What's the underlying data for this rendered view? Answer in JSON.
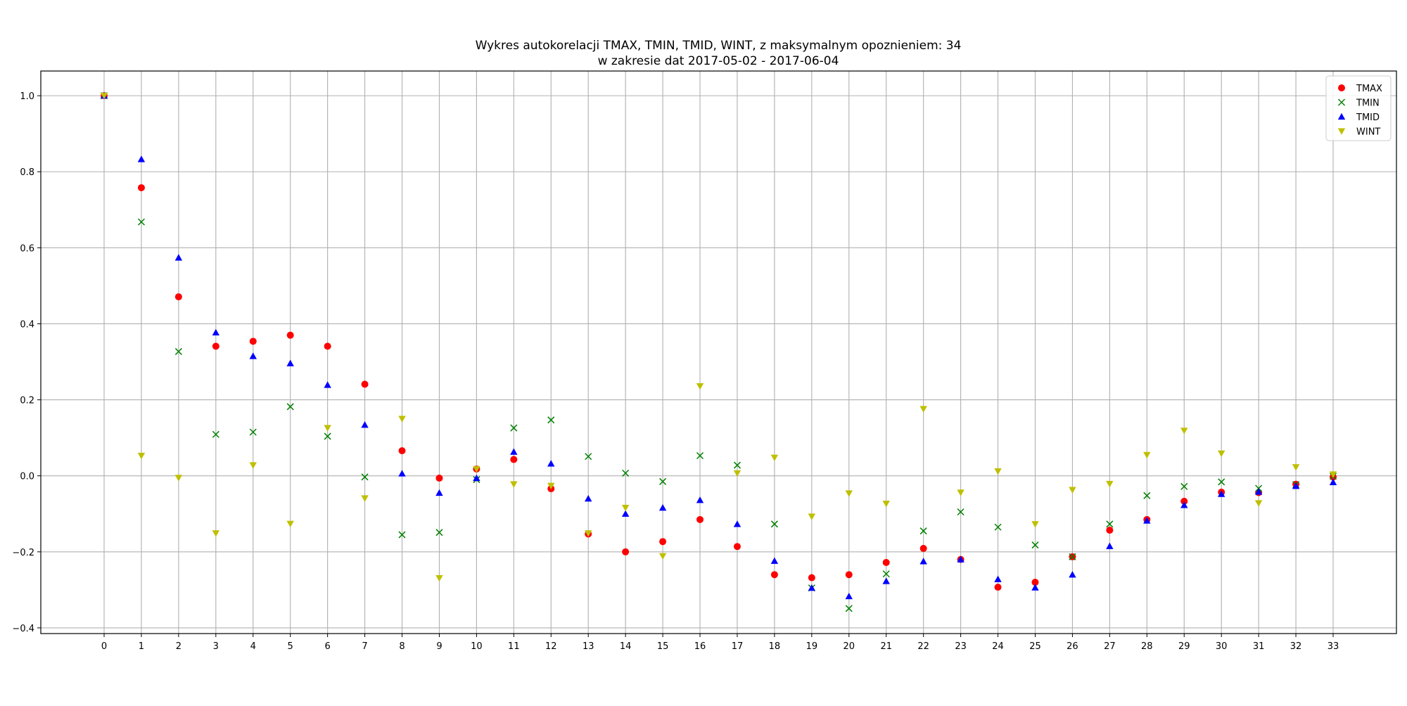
{
  "chart_data": {
    "type": "scatter",
    "title": "Wykres autokorelacji TMAX, TMIN, TMID, WINT, z maksymalnym opoznieniem: 34",
    "subtitle": "w zakresie dat 2017-05-02 - 2017-06-04",
    "xlabel": "",
    "ylabel": "",
    "x": [
      0,
      1,
      2,
      3,
      4,
      5,
      6,
      7,
      8,
      9,
      10,
      11,
      12,
      13,
      14,
      15,
      16,
      17,
      18,
      19,
      20,
      21,
      22,
      23,
      24,
      25,
      26,
      27,
      28,
      29,
      30,
      31,
      32,
      33
    ],
    "xlim": [
      -1.7,
      34.7
    ],
    "ylim": [
      -0.415,
      1.065
    ],
    "yticks": [
      -0.4,
      -0.2,
      0.0,
      0.2,
      0.4,
      0.6,
      0.8,
      1.0
    ],
    "ytick_labels": [
      "−0.4",
      "−0.2",
      "0.0",
      "0.2",
      "0.4",
      "0.6",
      "0.8",
      "1.0"
    ],
    "grid": true,
    "legend_position": "top-right",
    "series": [
      {
        "name": "TMAX",
        "marker": "circle",
        "color": "#ff0000",
        "values": [
          1.0,
          0.758,
          0.471,
          0.341,
          0.354,
          0.37,
          0.341,
          0.241,
          0.066,
          -0.006,
          0.018,
          0.043,
          -0.034,
          -0.153,
          -0.2,
          -0.173,
          -0.115,
          -0.186,
          -0.26,
          -0.268,
          -0.26,
          -0.228,
          -0.191,
          -0.22,
          -0.293,
          -0.28,
          -0.213,
          -0.143,
          -0.115,
          -0.067,
          -0.043,
          -0.044,
          -0.022,
          -0.003
        ]
      },
      {
        "name": "TMIN",
        "marker": "x",
        "color": "#008000",
        "values": [
          1.0,
          0.668,
          0.327,
          0.109,
          0.115,
          0.182,
          0.104,
          -0.003,
          -0.155,
          -0.149,
          -0.01,
          0.126,
          0.147,
          0.051,
          0.007,
          -0.015,
          0.053,
          0.028,
          -0.127,
          -0.295,
          -0.349,
          -0.258,
          -0.145,
          -0.095,
          -0.135,
          -0.182,
          -0.213,
          -0.127,
          -0.052,
          -0.028,
          -0.016,
          -0.033,
          -0.023,
          -0.001
        ]
      },
      {
        "name": "TMID",
        "marker": "triangle-up",
        "color": "#0000ff",
        "values": [
          1.0,
          0.833,
          0.574,
          0.377,
          0.315,
          0.296,
          0.239,
          0.134,
          0.006,
          -0.045,
          -0.006,
          0.063,
          0.032,
          -0.06,
          -0.1,
          -0.084,
          -0.064,
          -0.127,
          -0.224,
          -0.295,
          -0.317,
          -0.277,
          -0.225,
          -0.22,
          -0.272,
          -0.294,
          -0.26,
          -0.185,
          -0.118,
          -0.077,
          -0.048,
          -0.042,
          -0.027,
          -0.017
        ]
      },
      {
        "name": "WINT",
        "marker": "triangle-down",
        "color": "#bfbf00",
        "values": [
          1.0,
          0.053,
          -0.005,
          -0.151,
          0.028,
          -0.126,
          0.126,
          -0.059,
          0.15,
          -0.269,
          0.018,
          -0.022,
          -0.026,
          -0.151,
          -0.084,
          -0.211,
          0.236,
          0.007,
          0.048,
          -0.107,
          -0.046,
          -0.073,
          0.176,
          -0.044,
          0.012,
          -0.127,
          -0.037,
          -0.021,
          0.055,
          0.119,
          0.059,
          -0.072,
          0.023,
          0.004
        ]
      }
    ]
  }
}
